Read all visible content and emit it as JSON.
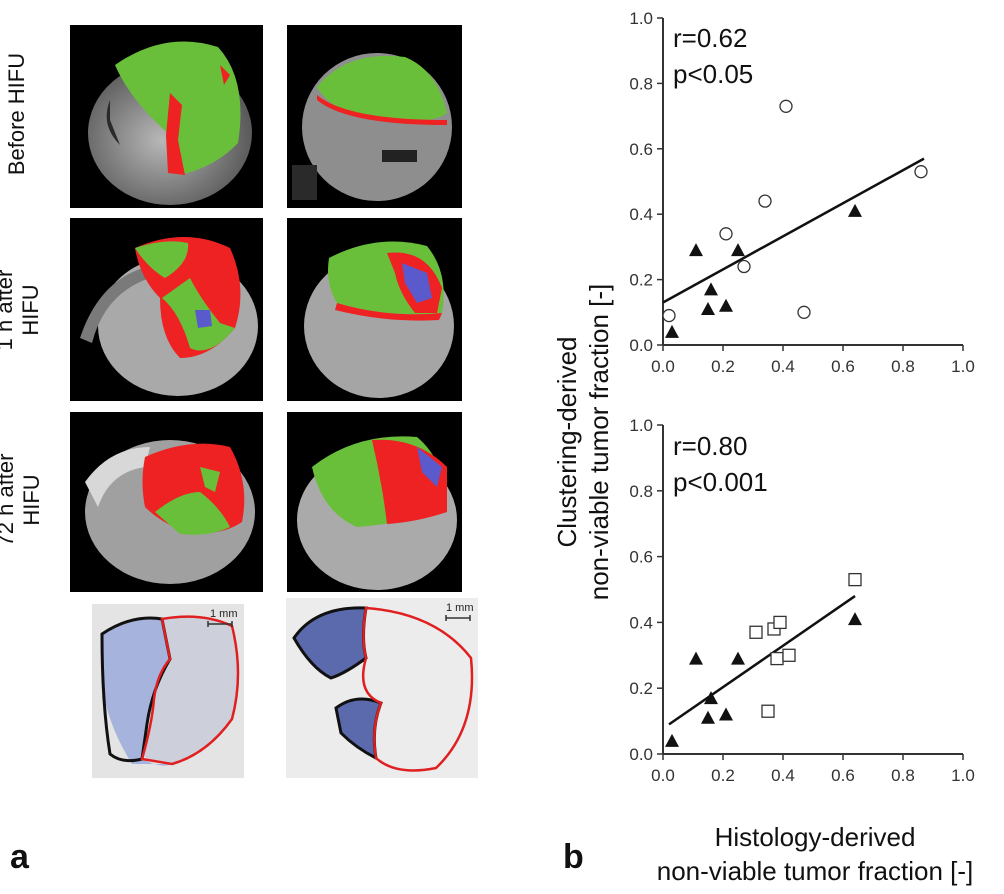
{
  "panel_a": {
    "letter": "a",
    "row_labels": [
      {
        "line1": "Before HIFU",
        "line2": ""
      },
      {
        "line1": "1 h after",
        "line2": "HIFU"
      },
      {
        "line1": "72 h after",
        "line2": "HIFU"
      }
    ],
    "scale_bars": [
      "1 mm",
      "1 mm"
    ],
    "colors": {
      "green": "#6abf3a",
      "red": "#ee2222",
      "blue": "#5a5acc",
      "outline_black": "#111111",
      "outline_red": "#e02020",
      "stain": "#7f8fc8"
    }
  },
  "panel_b": {
    "letter": "b",
    "ylabel_line1": "Clustering-derived",
    "ylabel_line2": "non-viable tumor fraction [-]",
    "xlabel_line1": "Histology-derived",
    "xlabel_line2": "non-viable tumor fraction [-]"
  },
  "chart_data": [
    {
      "type": "scatter",
      "stat_r": "r=0.62",
      "stat_p": "p<0.05",
      "xlim": [
        0,
        1
      ],
      "ylim": [
        0,
        1
      ],
      "xticks": [
        "0.0",
        "0.2",
        "0.4",
        "0.6",
        "0.8",
        "1.0"
      ],
      "yticks": [
        "0.0",
        "0.2",
        "0.4",
        "0.6",
        "0.8",
        "1.0"
      ],
      "series": [
        {
          "marker": "triangle-filled",
          "x": [
            0.03,
            0.11,
            0.15,
            0.16,
            0.21,
            0.25,
            0.64
          ],
          "y": [
            0.04,
            0.29,
            0.11,
            0.17,
            0.12,
            0.29,
            0.41
          ]
        },
        {
          "marker": "circle-open",
          "x": [
            0.02,
            0.21,
            0.27,
            0.34,
            0.41,
            0.47,
            0.86
          ],
          "y": [
            0.09,
            0.34,
            0.24,
            0.44,
            0.73,
            0.1,
            0.53
          ]
        }
      ],
      "fit": {
        "x0": 0.0,
        "y0": 0.13,
        "x1": 0.87,
        "y1": 0.57
      }
    },
    {
      "type": "scatter",
      "stat_r": "r=0.80",
      "stat_p": "p<0.001",
      "xlim": [
        0,
        1
      ],
      "ylim": [
        0,
        1
      ],
      "xticks": [
        "0.0",
        "0.2",
        "0.4",
        "0.6",
        "0.8",
        "1.0"
      ],
      "yticks": [
        "0.0",
        "0.2",
        "0.4",
        "0.6",
        "0.8",
        "1.0"
      ],
      "series": [
        {
          "marker": "triangle-filled",
          "x": [
            0.03,
            0.11,
            0.15,
            0.16,
            0.21,
            0.25,
            0.64
          ],
          "y": [
            0.04,
            0.29,
            0.11,
            0.17,
            0.12,
            0.29,
            0.41
          ]
        },
        {
          "marker": "square-open",
          "x": [
            0.31,
            0.35,
            0.37,
            0.38,
            0.39,
            0.42,
            0.64
          ],
          "y": [
            0.37,
            0.13,
            0.38,
            0.29,
            0.4,
            0.3,
            0.53
          ]
        }
      ],
      "fit": {
        "x0": 0.02,
        "y0": 0.09,
        "x1": 0.64,
        "y1": 0.48
      }
    }
  ]
}
